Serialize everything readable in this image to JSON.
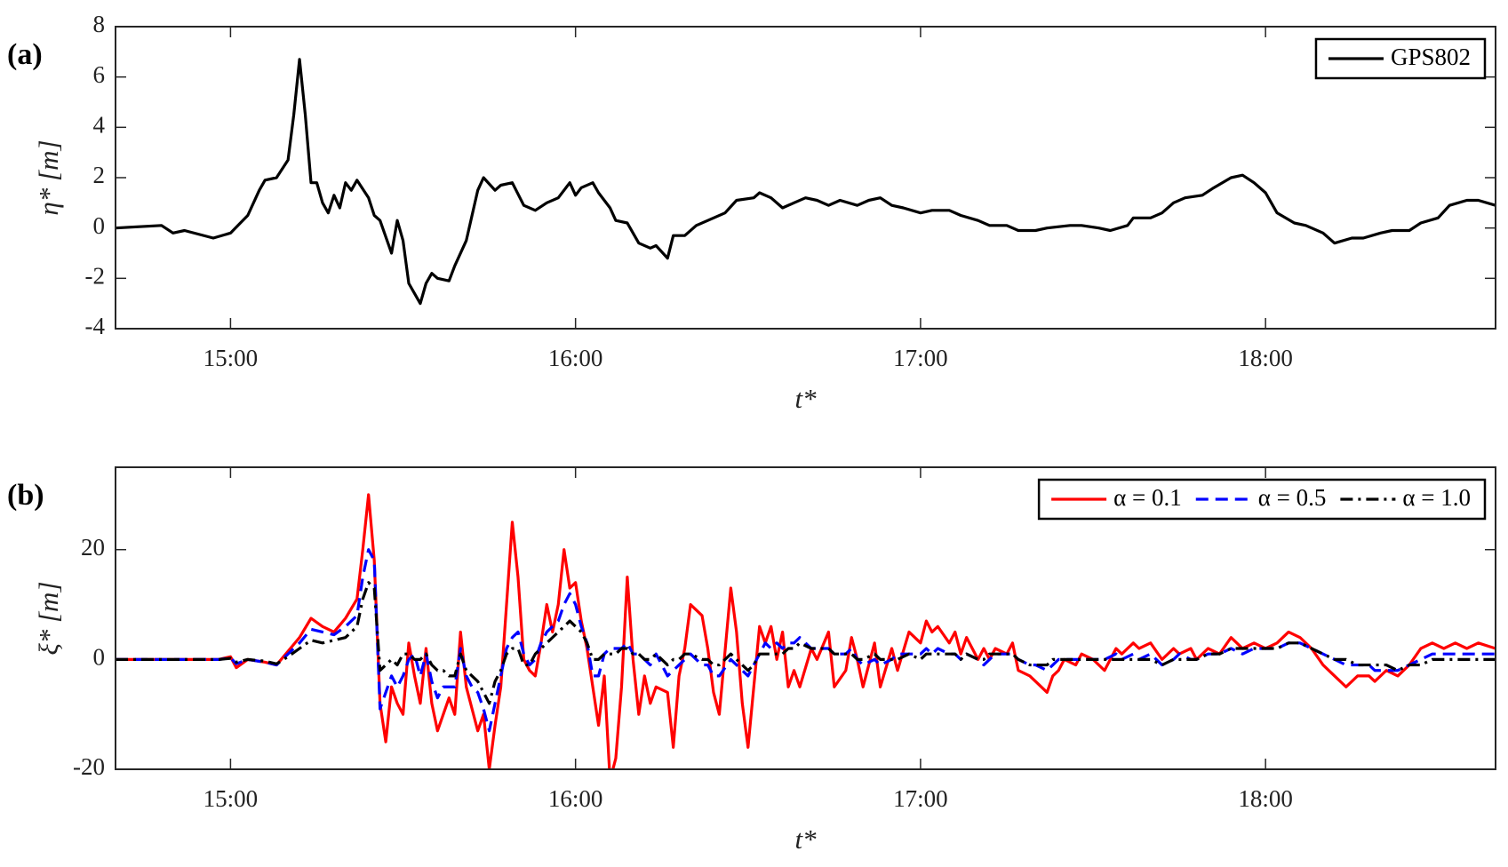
{
  "chart_data": [
    {
      "type": "line",
      "panel_label": "(a)",
      "x_label": "t*",
      "y_label": "η* [m]",
      "xlim": [
        "14:40",
        "18:40"
      ],
      "xticks": [
        "15:00",
        "16:00",
        "17:00",
        "18:00"
      ],
      "ylim": [
        -4,
        8
      ],
      "yticks": [
        -4,
        -2,
        0,
        2,
        4,
        6,
        8
      ],
      "legend": "upper right",
      "x": [
        "14:40",
        "14:48",
        "14:50",
        "14:52",
        "14:57",
        "15:00",
        "15:03",
        "15:05",
        "15:06",
        "15:08",
        "15:10",
        "15:11",
        "15:12",
        "15:13",
        "15:14",
        "15:15",
        "15:16",
        "15:17",
        "15:18",
        "15:19",
        "15:20",
        "15:21",
        "15:22",
        "15:24",
        "15:25",
        "15:26",
        "15:28",
        "15:29",
        "15:30",
        "15:31",
        "15:33",
        "15:34",
        "15:35",
        "15:36",
        "15:38",
        "15:39",
        "15:41",
        "15:42",
        "15:43",
        "15:44",
        "15:46",
        "15:47",
        "15:49",
        "15:51",
        "15:53",
        "15:55",
        "15:57",
        "15:59",
        "16:00",
        "16:01",
        "16:03",
        "16:04",
        "16:06",
        "16:07",
        "16:09",
        "16:11",
        "16:13",
        "16:14",
        "16:16",
        "16:17",
        "16:19",
        "16:21",
        "16:23",
        "16:26",
        "16:28",
        "16:31",
        "16:32",
        "16:34",
        "16:36",
        "16:38",
        "16:40",
        "16:42",
        "16:44",
        "16:46",
        "16:49",
        "16:51",
        "16:53",
        "16:55",
        "16:57",
        "17:00",
        "17:02",
        "17:05",
        "17:07",
        "17:10",
        "17:12",
        "17:15",
        "17:17",
        "17:20",
        "17:22",
        "17:26",
        "17:28",
        "17:31",
        "17:33",
        "17:36",
        "17:37",
        "17:40",
        "17:42",
        "17:44",
        "17:46",
        "17:49",
        "17:51",
        "17:54",
        "17:56",
        "17:58",
        "18:00",
        "18:02",
        "18:05",
        "18:07",
        "18:10",
        "18:12",
        "18:15",
        "18:17",
        "18:20",
        "18:22",
        "18:25",
        "18:27",
        "18:30",
        "18:32",
        "18:35",
        "18:37",
        "18:40"
      ],
      "series": [
        {
          "name": "GPS802",
          "color": "#000000",
          "dash": "solid",
          "values": [
            0,
            0.1,
            -0.2,
            -0.1,
            -0.4,
            -0.2,
            0.5,
            1.5,
            1.9,
            2.0,
            2.7,
            4.5,
            6.7,
            4.5,
            1.8,
            1.8,
            1.0,
            0.6,
            1.3,
            0.8,
            1.8,
            1.5,
            1.9,
            1.2,
            0.5,
            0.3,
            -1.0,
            0.3,
            -0.5,
            -2.2,
            -3.0,
            -2.2,
            -1.8,
            -2.0,
            -2.1,
            -1.5,
            -0.5,
            0.5,
            1.5,
            2.0,
            1.5,
            1.7,
            1.8,
            0.9,
            0.7,
            1.0,
            1.2,
            1.8,
            1.3,
            1.6,
            1.8,
            1.4,
            0.8,
            0.3,
            0.2,
            -0.6,
            -0.8,
            -0.7,
            -1.2,
            -0.3,
            -0.3,
            0.1,
            0.3,
            0.6,
            1.1,
            1.2,
            1.4,
            1.2,
            0.8,
            1.0,
            1.2,
            1.1,
            0.9,
            1.1,
            0.9,
            1.1,
            1.2,
            0.9,
            0.8,
            0.6,
            0.7,
            0.7,
            0.5,
            0.3,
            0.1,
            0.1,
            -0.1,
            -0.1,
            0,
            0.1,
            0.1,
            0,
            -0.1,
            0.1,
            0.4,
            0.4,
            0.6,
            1.0,
            1.2,
            1.3,
            1.6,
            2.0,
            2.1,
            1.8,
            1.4,
            0.6,
            0.2,
            0.1,
            -0.2,
            -0.6,
            -0.4,
            -0.4,
            -0.2,
            -0.1,
            -0.1,
            0.2,
            0.4,
            0.9,
            1.1,
            1.1,
            0.9
          ]
        }
      ]
    },
    {
      "type": "line",
      "panel_label": "(b)",
      "x_label": "t*",
      "y_label": "ξ* [m]",
      "xlim": [
        "14:40",
        "18:40"
      ],
      "xticks": [
        "15:00",
        "16:00",
        "17:00",
        "18:00"
      ],
      "ylim": [
        -20,
        35
      ],
      "yticks": [
        -20,
        0,
        20
      ],
      "legend": "upper right",
      "x": [
        "14:40",
        "14:58",
        "15:00",
        "15:01",
        "15:03",
        "15:06",
        "15:08",
        "15:10",
        "15:12",
        "15:14",
        "15:16",
        "15:18",
        "15:20",
        "15:22",
        "15:23",
        "15:24",
        "15:25",
        "15:26",
        "15:27",
        "15:28",
        "15:29",
        "15:30",
        "15:31",
        "15:32",
        "15:33",
        "15:34",
        "15:35",
        "15:36",
        "15:37",
        "15:38",
        "15:39",
        "15:40",
        "15:41",
        "15:42",
        "15:43",
        "15:44",
        "15:45",
        "15:46",
        "15:47",
        "15:48",
        "15:49",
        "15:50",
        "15:51",
        "15:52",
        "15:53",
        "15:54",
        "15:55",
        "15:56",
        "15:57",
        "15:58",
        "15:59",
        "16:00",
        "16:01",
        "16:02",
        "16:03",
        "16:04",
        "16:05",
        "16:06",
        "16:07",
        "16:08",
        "16:09",
        "16:10",
        "16:11",
        "16:12",
        "16:13",
        "16:14",
        "16:16",
        "16:17",
        "16:18",
        "16:19",
        "16:20",
        "16:22",
        "16:23",
        "16:24",
        "16:25",
        "16:27",
        "16:28",
        "16:29",
        "16:30",
        "16:31",
        "16:32",
        "16:33",
        "16:34",
        "16:35",
        "16:36",
        "16:37",
        "16:38",
        "16:39",
        "16:41",
        "16:42",
        "16:44",
        "16:45",
        "16:47",
        "16:48",
        "16:49",
        "16:50",
        "16:52",
        "16:53",
        "16:55",
        "16:56",
        "16:58",
        "17:00",
        "17:01",
        "17:02",
        "17:03",
        "17:05",
        "17:06",
        "17:07",
        "17:08",
        "17:10",
        "17:11",
        "17:12",
        "17:13",
        "17:15",
        "17:16",
        "17:17",
        "17:19",
        "17:20",
        "17:22",
        "17:23",
        "17:24",
        "17:25",
        "17:27",
        "17:28",
        "17:30",
        "17:32",
        "17:34",
        "17:35",
        "17:37",
        "17:38",
        "17:40",
        "17:42",
        "17:44",
        "17:45",
        "17:47",
        "17:48",
        "17:50",
        "17:52",
        "17:54",
        "17:56",
        "17:58",
        "18:00",
        "18:02",
        "18:04",
        "18:06",
        "18:08",
        "18:10",
        "18:12",
        "18:14",
        "18:16",
        "18:18",
        "18:19",
        "18:21",
        "18:23",
        "18:25",
        "18:27",
        "18:29",
        "18:31",
        "18:33",
        "18:35",
        "18:37",
        "18:40"
      ],
      "series": [
        {
          "name": "α = 0.1",
          "color": "#ff0000",
          "dash": "solid",
          "values": [
            0,
            0,
            0.5,
            -1.5,
            0,
            -0.5,
            -1,
            1.5,
            4,
            7.5,
            6,
            5,
            7.5,
            11,
            20,
            30,
            18,
            -8,
            -15,
            -5,
            -8,
            -10,
            3,
            -3,
            -8,
            2,
            -8,
            -13,
            -10,
            -7,
            -10,
            5,
            -5,
            -9,
            -13,
            -10,
            -20,
            -12,
            -5,
            10,
            25,
            15,
            0,
            -2,
            -3,
            3,
            10,
            5,
            10,
            20,
            13,
            14,
            7,
            2,
            -5,
            -12,
            -3,
            -22,
            -18,
            -5,
            15,
            0,
            -10,
            -3,
            -8,
            -5,
            -6,
            -16,
            -3,
            2,
            10,
            8,
            2,
            -6,
            -10,
            13,
            5,
            -8,
            -16,
            -5,
            6,
            3,
            6,
            0,
            5,
            -5,
            -2,
            -5,
            2,
            0,
            5,
            -5,
            -2,
            4,
            0,
            -5,
            3,
            -5,
            2,
            -2,
            5,
            3,
            7,
            5,
            6,
            3,
            5,
            1,
            4,
            0,
            2,
            0,
            2,
            1,
            3,
            -2,
            -3,
            -4,
            -6,
            -3,
            -2,
            0,
            -1,
            1,
            0,
            -2,
            2,
            1,
            3,
            2,
            3,
            0,
            2,
            1,
            2,
            0,
            2,
            1,
            4,
            2,
            3,
            2,
            3,
            5,
            4,
            2,
            -1,
            -3,
            -5,
            -3,
            -3,
            -4,
            -2,
            -3,
            -1,
            2,
            3,
            2,
            3,
            2,
            3,
            2
          ]
        },
        {
          "name": "α = 0.5",
          "color": "#0000ff",
          "dash": "dashed",
          "values": [
            0,
            0,
            0.3,
            -0.8,
            0,
            -0.5,
            -1,
            1,
            3,
            5.5,
            5,
            4.5,
            6,
            8,
            15,
            20,
            18,
            -9,
            -6,
            -3,
            -5,
            -3,
            0,
            1,
            -3,
            1,
            -4,
            -7,
            -5,
            -5,
            -5,
            2,
            -3,
            -5,
            -6,
            -9,
            -13,
            -8,
            -3,
            2,
            4,
            5,
            1,
            -1,
            0,
            3,
            5,
            6,
            7,
            10,
            12,
            10,
            6,
            3,
            -3,
            -3,
            1,
            2,
            2,
            2,
            3,
            1,
            1,
            0,
            -1,
            1,
            -3,
            -2,
            -1,
            0,
            1,
            -1,
            -1,
            -3,
            -3,
            0,
            -1,
            -2,
            -3,
            -1,
            1,
            3,
            2,
            3,
            2,
            3,
            3,
            4,
            2,
            2,
            2,
            1,
            1,
            2,
            0,
            -1,
            0,
            -1,
            0,
            1,
            1,
            1,
            2,
            1,
            2,
            1,
            1,
            0,
            1,
            0,
            -1,
            0,
            1,
            1,
            1,
            0,
            -1,
            -1,
            -2,
            -1,
            0,
            0,
            0,
            0,
            0,
            0,
            1,
            0,
            1,
            0,
            1,
            -1,
            0,
            1,
            0,
            0,
            1,
            1,
            2,
            1,
            2,
            2,
            2,
            3,
            3,
            2,
            1,
            0,
            -1,
            -1,
            -1,
            -2,
            -2,
            -2,
            -1,
            0,
            1,
            1,
            1,
            1,
            1,
            1
          ]
        },
        {
          "name": "α = 1.0",
          "color": "#000000",
          "dash": "dashdot",
          "values": [
            0,
            0,
            0.2,
            -0.5,
            0,
            -0.3,
            -0.8,
            0.5,
            2,
            3.5,
            3,
            3.5,
            4,
            6,
            11,
            14,
            13,
            -2,
            -1,
            0,
            -1,
            1,
            1,
            0,
            0,
            1,
            -1,
            -2,
            -2,
            -3,
            -3,
            1,
            -2,
            -3,
            -4,
            -6,
            -8,
            -4,
            -2,
            1,
            2,
            2,
            -1,
            -1,
            1,
            2,
            3,
            4,
            5,
            6,
            7,
            6,
            5,
            3,
            0,
            0,
            1,
            1,
            1,
            2,
            2,
            1,
            1,
            0,
            0,
            1,
            -1,
            0,
            0,
            1,
            1,
            0,
            0,
            -1,
            -1,
            1,
            0,
            -1,
            -2,
            -1,
            1,
            1,
            1,
            1,
            1,
            2,
            2,
            3,
            2,
            2,
            2,
            1,
            1,
            1,
            0,
            0,
            1,
            0,
            0,
            0,
            1,
            0,
            1,
            1,
            1,
            1,
            1,
            0,
            1,
            0,
            0,
            1,
            1,
            1,
            1,
            0,
            -1,
            -1,
            -1,
            0,
            0,
            0,
            0,
            0,
            0,
            0,
            0,
            0,
            0,
            0,
            0,
            -1,
            0,
            0,
            0,
            0,
            1,
            1,
            2,
            2,
            2,
            2,
            2,
            3,
            3,
            2,
            1,
            0,
            0,
            -1,
            -1,
            -1,
            -1,
            -2,
            -1,
            -1,
            0,
            0,
            0,
            0,
            0,
            0
          ]
        }
      ]
    }
  ]
}
